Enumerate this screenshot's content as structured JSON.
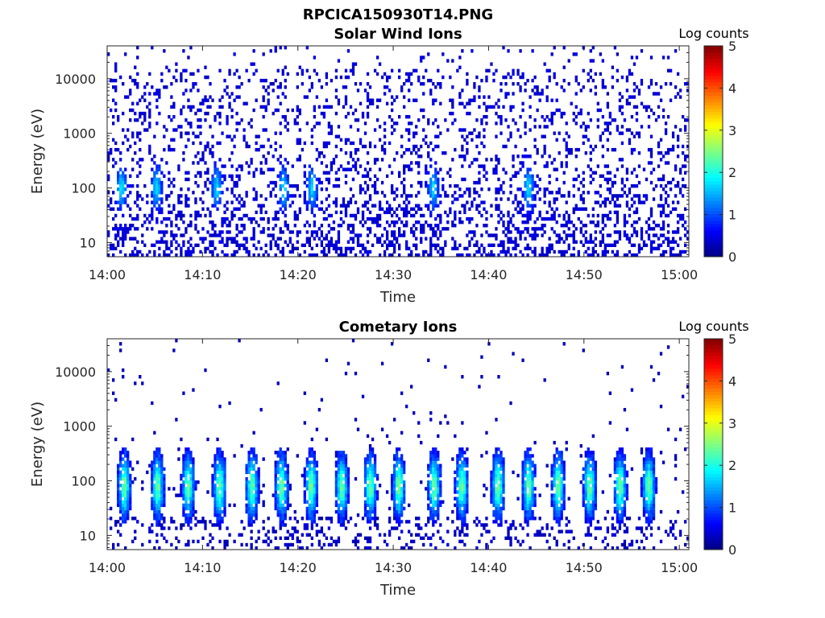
{
  "figure": {
    "title": "RPCICA150930T14.PNG"
  },
  "chart_data": [
    {
      "type": "heatmap",
      "title": "Solar Wind Ions",
      "xlabel": "Time",
      "ylabel": "Energy (eV)",
      "x_ticks": [
        "14:00",
        "14:10",
        "14:20",
        "14:30",
        "14:40",
        "14:50",
        "15:00"
      ],
      "x_range_minutes": [
        0,
        61
      ],
      "y_scale": "log",
      "y_range": [
        5.5,
        40000
      ],
      "y_ticks": [
        10,
        100,
        1000,
        10000
      ],
      "y_tick_labels": [
        "10",
        "100",
        "1000",
        "10000"
      ],
      "colorbar": {
        "label": "Log counts",
        "min": 0,
        "max": 5,
        "ticks": [
          "0",
          "1",
          "2",
          "3",
          "4",
          "5"
        ],
        "colormap": "jet"
      },
      "grid": false,
      "description_of_values": "Sparse scattered counts across 10–20000 eV, mostly log counts ~0–0.5; small enhancements ~0.8–1.5 near 100 eV at bursts",
      "bursts_minutes": [
        1.5,
        5.2,
        11.5,
        18.5,
        21.5,
        34.2,
        44.2
      ],
      "burst_peak_energy_eV": 100,
      "burst_peak_log_counts": 1.6,
      "background_log_counts": 0.3
    },
    {
      "type": "heatmap",
      "title": "Cometary Ions",
      "xlabel": "Time",
      "ylabel": "Energy (eV)",
      "x_ticks": [
        "14:00",
        "14:10",
        "14:20",
        "14:30",
        "14:40",
        "14:50",
        "15:00"
      ],
      "x_range_minutes": [
        0,
        61
      ],
      "y_scale": "log",
      "y_range": [
        5.5,
        40000
      ],
      "y_ticks": [
        10,
        100,
        1000,
        10000
      ],
      "y_tick_labels": [
        "10",
        "100",
        "1000",
        "10000"
      ],
      "colorbar": {
        "label": "Log counts",
        "min": 0,
        "max": 5,
        "ticks": [
          "0",
          "1",
          "2",
          "3",
          "4",
          "5"
        ],
        "colormap": "jet"
      },
      "grid": false,
      "description_of_values": "Periodic vertical bursts (~every 3 min) spanning ~15–500 eV, peak log counts ~2–2.5 near 70–100 eV; sparse dots above 1000 eV",
      "bursts_minutes": [
        1.8,
        5.3,
        8.5,
        11.8,
        15.2,
        18.3,
        21.4,
        24.6,
        27.6,
        30.6,
        34.3,
        37.2,
        41.0,
        44.2,
        47.3,
        50.6,
        53.8,
        56.8
      ],
      "burst_peak_energy_eV": 80,
      "burst_peak_log_counts": 2.3,
      "background_log_counts": 0.2
    }
  ]
}
